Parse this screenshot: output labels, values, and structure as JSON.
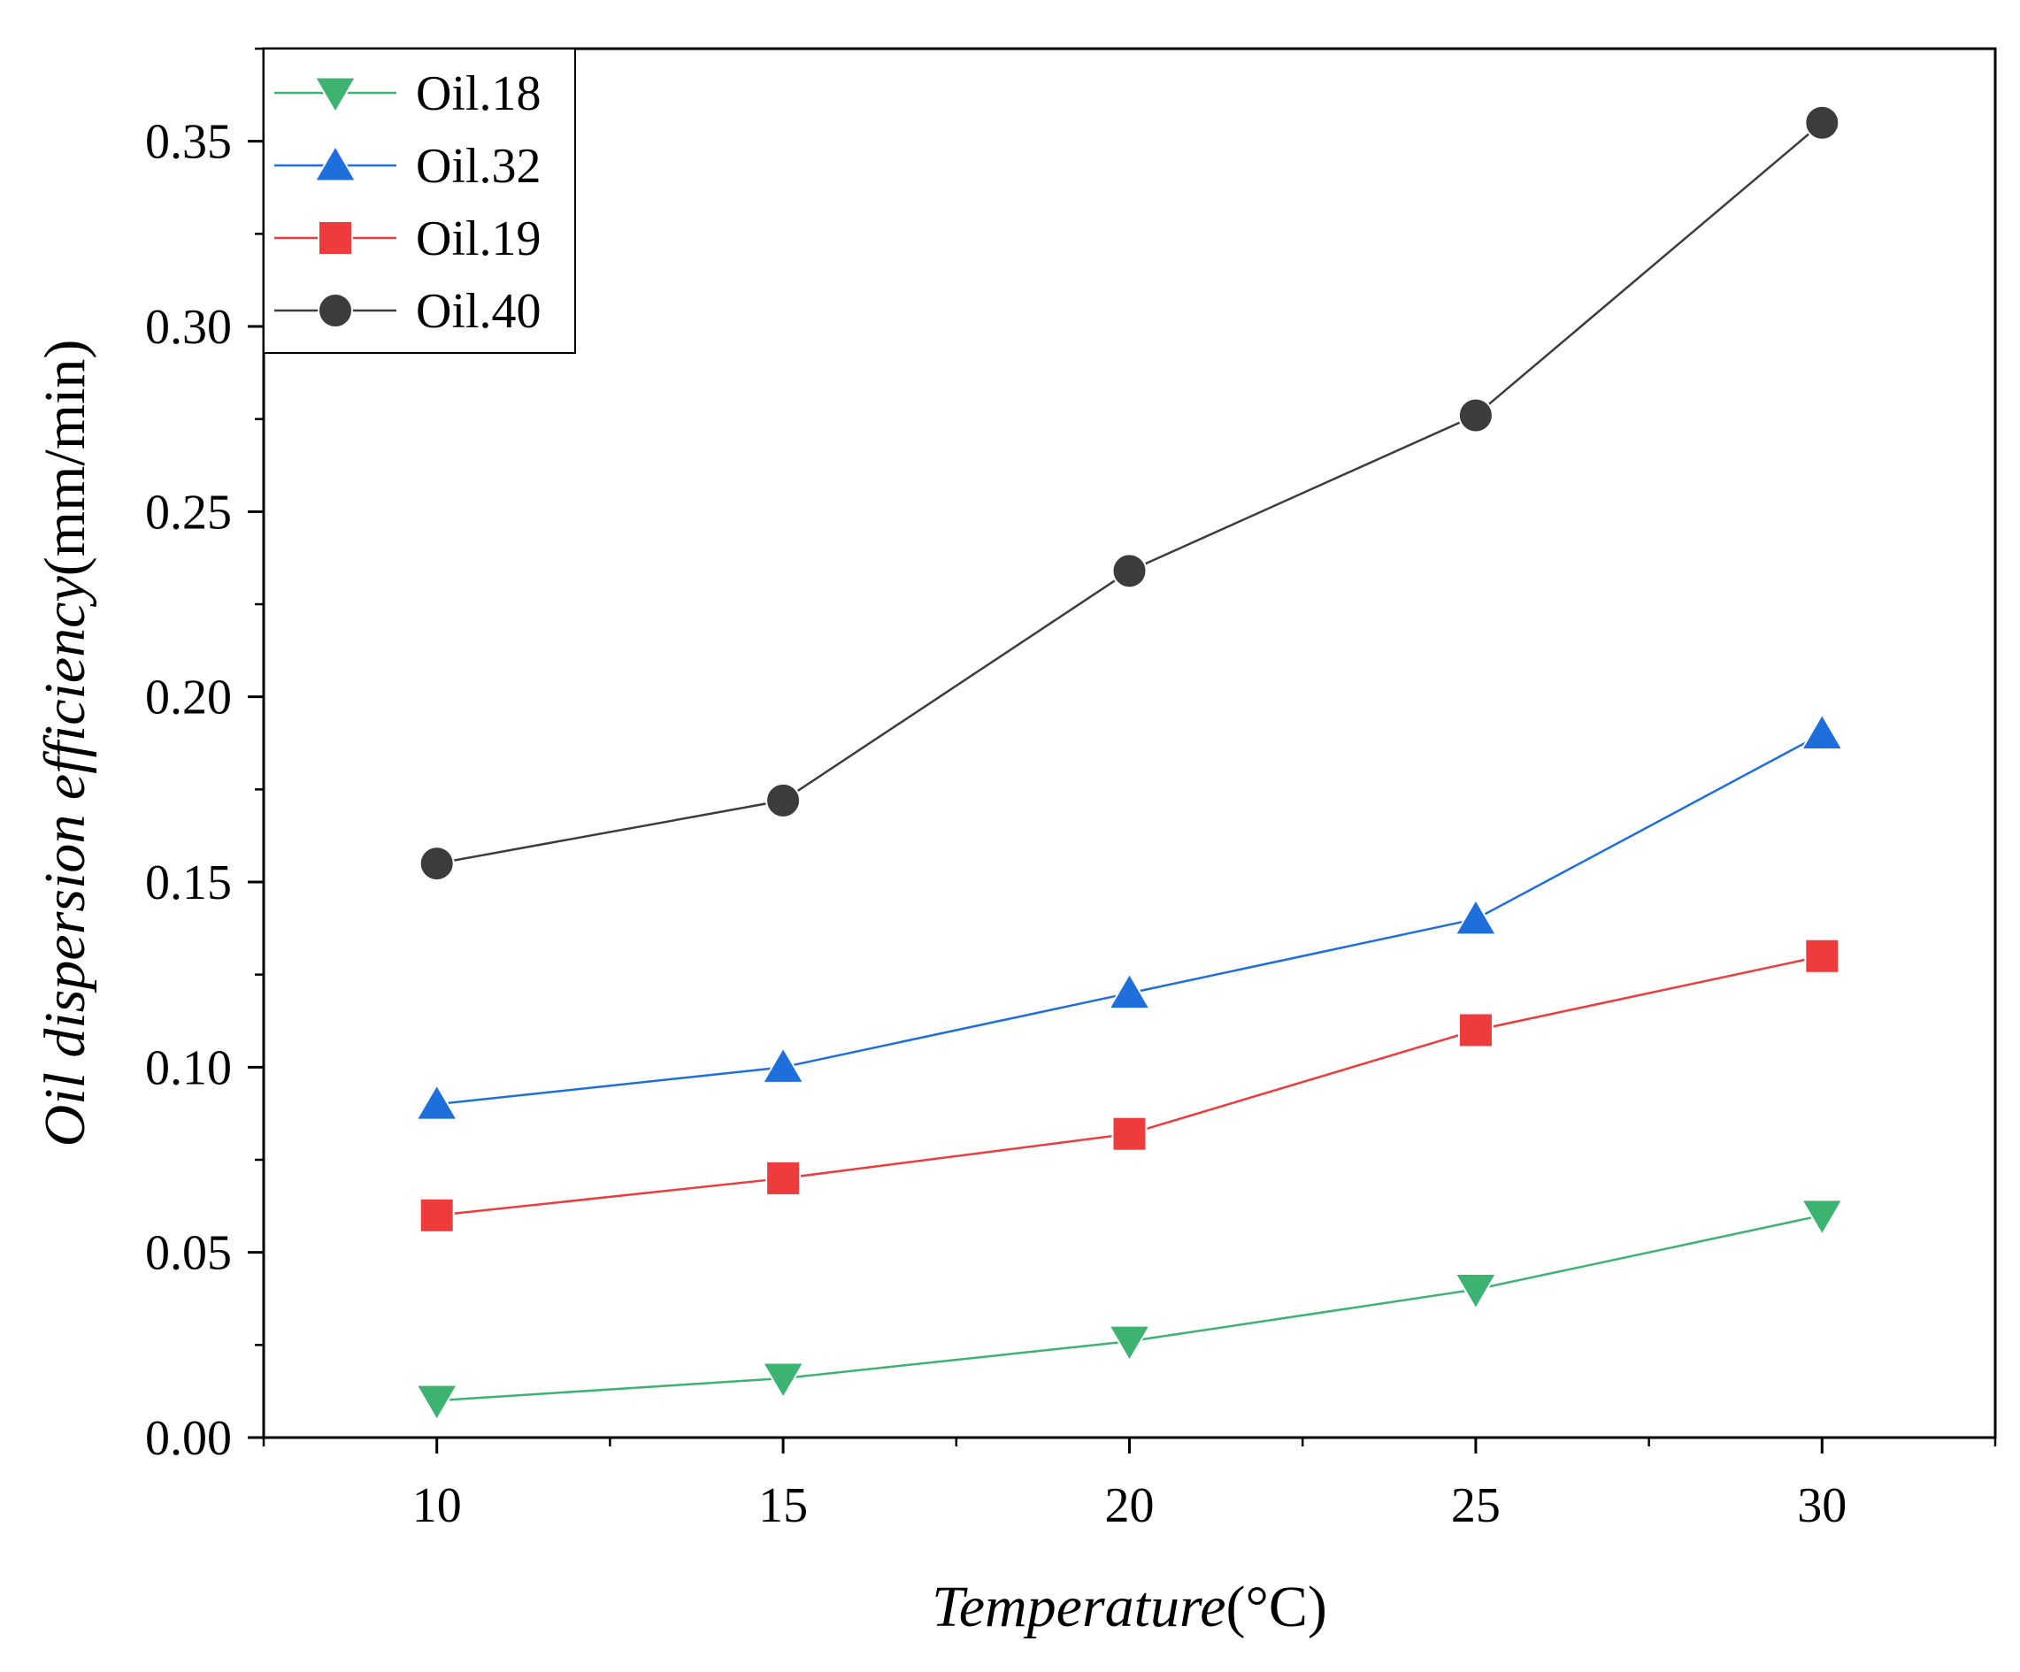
{
  "chart_data": {
    "type": "line",
    "title": "",
    "xlabel_italic": "Temperature",
    "xlabel_unit": "(°C)",
    "ylabel_italic": "Oil dispersion efficiency",
    "ylabel_unit": "(mm/min)",
    "x": [
      10,
      15,
      20,
      25,
      30
    ],
    "xlim": [
      7.5,
      32.5
    ],
    "ylim": [
      0,
      0.375
    ],
    "xticks": [
      10,
      15,
      20,
      25,
      30
    ],
    "xtick_labels": [
      "10",
      "15",
      "20",
      "25",
      "30"
    ],
    "yticks": [
      0,
      0.05,
      0.1,
      0.15,
      0.2,
      0.25,
      0.3,
      0.35
    ],
    "ytick_labels": [
      "0.00",
      "0.05",
      "0.10",
      "0.15",
      "0.20",
      "0.25",
      "0.30",
      "0.35"
    ],
    "grid": false,
    "legend_position": "top-left",
    "series": [
      {
        "name": "Oil.18",
        "color": "#3cb371",
        "marker": "triangle-down",
        "values": [
          0.01,
          0.016,
          0.026,
          0.04,
          0.06
        ]
      },
      {
        "name": "Oil.32",
        "color": "#1e6fdc",
        "marker": "triangle-up",
        "values": [
          0.09,
          0.1,
          0.12,
          0.14,
          0.19
        ]
      },
      {
        "name": "Oil.19",
        "color": "#ee3b3b",
        "marker": "square",
        "values": [
          0.06,
          0.07,
          0.082,
          0.11,
          0.13
        ]
      },
      {
        "name": "Oil.40",
        "color": "#3c3c3c",
        "marker": "circle",
        "values": [
          0.155,
          0.172,
          0.234,
          0.276,
          0.355
        ]
      }
    ]
  }
}
